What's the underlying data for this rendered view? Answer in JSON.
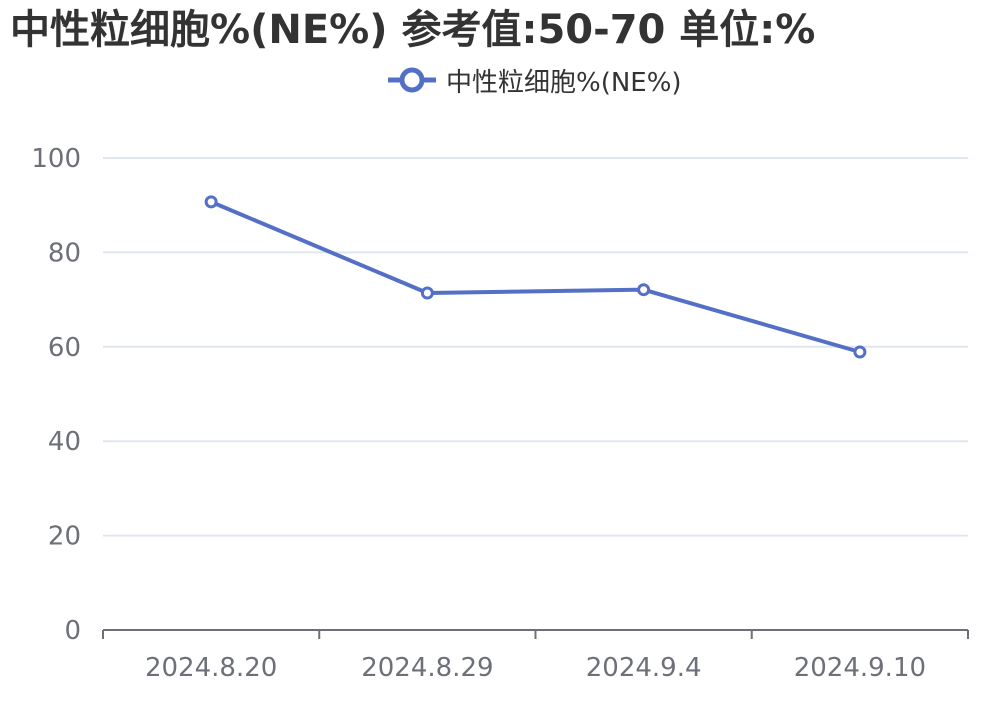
{
  "chart_data": {
    "type": "line",
    "title": "中性粒细胞%(NE%)  参考值:50-70 单位:%",
    "categories": [
      "2024.8.20",
      "2024.8.29",
      "2024.9.4",
      "2024.9.10"
    ],
    "series": [
      {
        "name": "中性粒细胞%(NE%)",
        "values": [
          90.7,
          71.4,
          72.1,
          58.9
        ],
        "color": "#5470c6"
      }
    ],
    "ylim": [
      0,
      100
    ],
    "yticks": [
      0,
      20,
      40,
      60,
      80,
      100
    ],
    "xlabel": "",
    "ylabel": "",
    "grid": true,
    "legend_position": "top-center"
  }
}
